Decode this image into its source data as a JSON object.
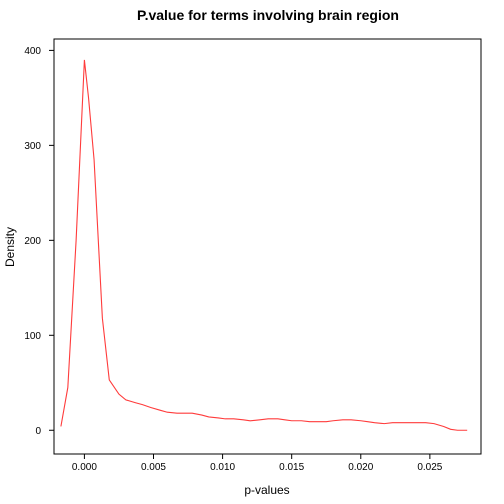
{
  "chart_data": {
    "type": "line",
    "title": "P.value for terms involving brain region",
    "xlabel": "p-values",
    "ylabel": "Density",
    "xlim": [
      -0.0022,
      0.0287
    ],
    "ylim": [
      -25,
      412
    ],
    "x_ticks": [
      0.0,
      0.005,
      0.01,
      0.015,
      0.02,
      0.025
    ],
    "x_tick_labels": [
      "0.000",
      "0.005",
      "0.010",
      "0.015",
      "0.020",
      "0.025"
    ],
    "y_ticks": [
      0,
      100,
      200,
      300,
      400
    ],
    "y_tick_labels": [
      "0",
      "100",
      "200",
      "300",
      "400"
    ],
    "grid": false,
    "series": [
      {
        "color": "#ff3b3b",
        "x": [
          -0.0017,
          -0.0012,
          -0.0006,
          0.0,
          0.0003,
          0.0007,
          0.0013,
          0.0018,
          0.0025,
          0.003,
          0.0037,
          0.0042,
          0.0048,
          0.0055,
          0.006,
          0.0067,
          0.0072,
          0.0078,
          0.0085,
          0.009,
          0.0097,
          0.0102,
          0.0108,
          0.0115,
          0.012,
          0.0127,
          0.0133,
          0.014,
          0.0145,
          0.015,
          0.0157,
          0.0163,
          0.017,
          0.0175,
          0.018,
          0.0187,
          0.0193,
          0.02,
          0.0205,
          0.021,
          0.0217,
          0.0223,
          0.023,
          0.0235,
          0.024,
          0.0247,
          0.0253,
          0.026,
          0.0265,
          0.027,
          0.0277
        ],
        "y": [
          4,
          45,
          200,
          390,
          350,
          285,
          118,
          53,
          38,
          32,
          29,
          27,
          24,
          21,
          19,
          18,
          18,
          18,
          16,
          14,
          13,
          12,
          12,
          11,
          10,
          11,
          12,
          12,
          11,
          10,
          10,
          9,
          9,
          9,
          10,
          11,
          11,
          10,
          9,
          8,
          7,
          8,
          8,
          8,
          8,
          8,
          7,
          4,
          1,
          0,
          0
        ]
      }
    ]
  }
}
